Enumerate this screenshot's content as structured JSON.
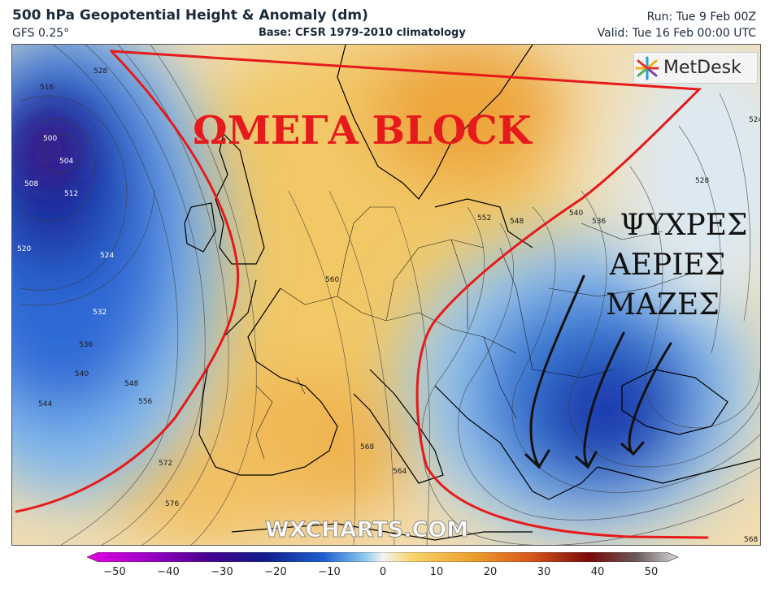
{
  "header": {
    "title": "500 hPa Geopotential Height & Anomaly (dm)",
    "model": "GFS 0.25°",
    "base": "Base: CFSR 1979-2010 climatology",
    "run": "Run: Tue 9 Feb 00Z",
    "valid": "Valid: Tue 16 Feb 00:00 UTC"
  },
  "logo": {
    "text": "MetDesk"
  },
  "watermark": "WXCHARTS.COM",
  "annotations": {
    "omega_block": "ΩΜΕΓΑ BLOCK",
    "cold_air_line1": "ΨΥΧΡΕΣ",
    "cold_air_line2": "ΑΕΡΙΕΣ",
    "cold_air_line3": "ΜΑΖΕΣ"
  },
  "contour_labels": [
    "528",
    "516",
    "500",
    "504",
    "508",
    "512",
    "520",
    "524",
    "532",
    "536",
    "540",
    "544",
    "548",
    "556",
    "560",
    "564",
    "568",
    "572",
    "576",
    "552",
    "548",
    "540",
    "536",
    "528",
    "524",
    "568"
  ],
  "colorbar": {
    "ticks": [
      "−50",
      "−40",
      "−30",
      "−20",
      "−10",
      "0",
      "10",
      "20",
      "30",
      "40",
      "50"
    ],
    "colors": {
      "magenta": "#e000e0",
      "deep_purple": "#4a0090",
      "navy": "#101c8a",
      "blue": "#1f5fd0",
      "light_blue": "#8ec8f0",
      "white": "#f4f4f4",
      "yellow": "#f6d46a",
      "orange": "#eda030",
      "red_orange": "#d8581a",
      "dark_red": "#7a0a0a",
      "grey": "#bdbdbd"
    }
  },
  "accent": {
    "annotation_red": "#e61a1a",
    "arrow_black": "#111111"
  }
}
